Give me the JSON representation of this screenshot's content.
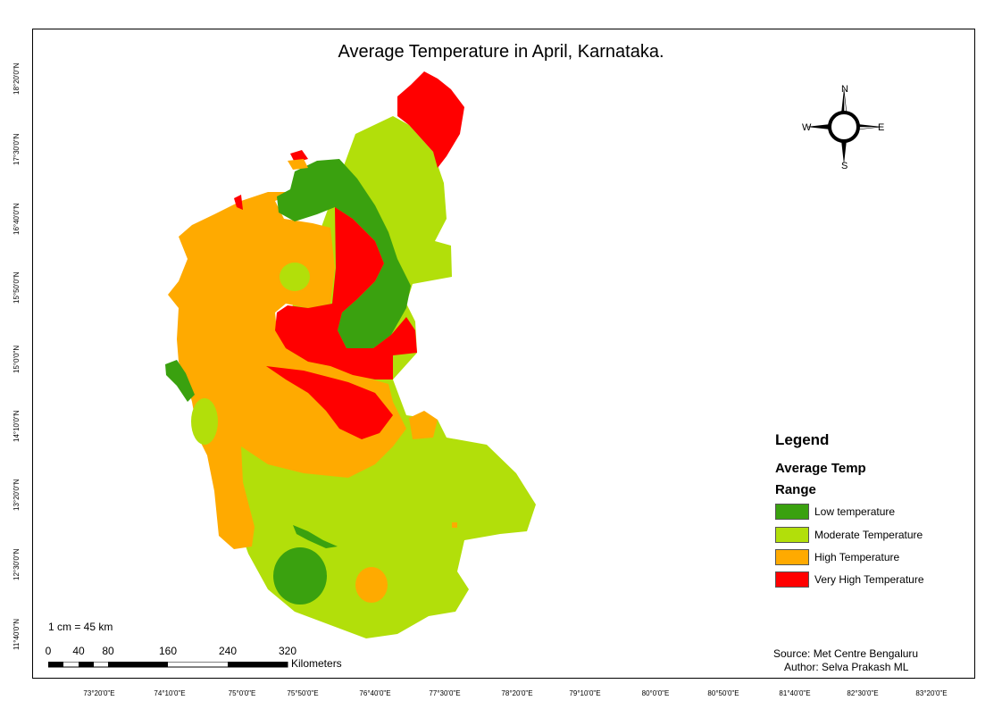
{
  "title": "Average Temperature in April, Karnataka.",
  "compass": {
    "n": "N",
    "s": "S",
    "e": "E",
    "w": "W"
  },
  "legend": {
    "heading": "Legend",
    "sub1": "Average Temp",
    "sub2": "Range",
    "items": [
      {
        "label": "Low temperature",
        "color": "#3aa10f"
      },
      {
        "label": "Moderate Temperature",
        "color": "#b2df0a"
      },
      {
        "label": "High Temperature",
        "color": "#ffaa00"
      },
      {
        "label": "Very High Temperature",
        "color": "#ff0000"
      }
    ]
  },
  "scale": {
    "ratio": "1 cm = 45 km",
    "ticks": [
      "0",
      "40",
      "80",
      "160",
      "240",
      "320"
    ],
    "unit": "Kilometers"
  },
  "source": "Source: Met Centre Bengaluru",
  "author": "Author: Selva Prakash ML",
  "lat_labels": [
    "18°20'0\"N",
    "17°30'0\"N",
    "16°40'0\"N",
    "15°50'0\"N",
    "15°0'0\"N",
    "14°10'0\"N",
    "13°20'0\"N",
    "12°30'0\"N",
    "11°40'0\"N"
  ],
  "lon_labels": [
    "73°20'0\"E",
    "74°10'0\"E",
    "75°0'0\"E",
    "75°50'0\"E",
    "76°40'0\"E",
    "77°30'0\"E",
    "78°20'0\"E",
    "79°10'0\"E",
    "80°0'0\"E",
    "80°50'0\"E",
    "81°40'0\"E",
    "82°30'0\"E",
    "83°20'0\"E"
  ]
}
